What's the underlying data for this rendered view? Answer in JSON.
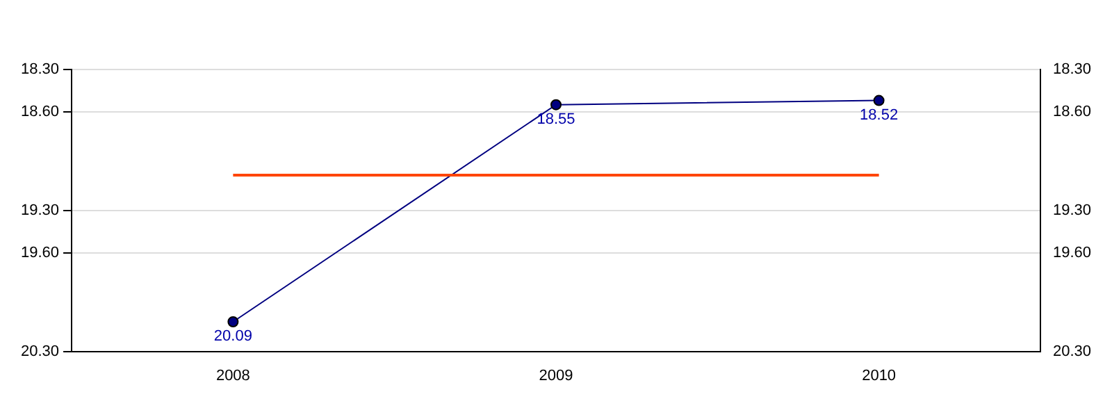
{
  "chart_data": {
    "type": "line",
    "categories": [
      "2008",
      "2009",
      "2010"
    ],
    "series": [
      {
        "color": "#000080",
        "values": [
          20.09,
          18.55,
          18.52
        ]
      }
    ],
    "data_labels": true,
    "marker": "circle",
    "grid": "y",
    "legend": false,
    "ylim": [
      20.3,
      18.3
    ],
    "yticks": [
      {
        "value": 18.3,
        "label": "18.30"
      },
      {
        "value": 18.6,
        "label": "18.60"
      },
      {
        "value": 19.3,
        "label": "19.30"
      },
      {
        "value": 19.6,
        "label": "19.60"
      },
      {
        "value": 20.3,
        "label": "20.30"
      }
    ],
    "y2lim": [
      20.3,
      18.3
    ],
    "y2ticks": [
      {
        "value": 18.3,
        "label": "18.30"
      },
      {
        "value": 18.6,
        "label": "18.60"
      },
      {
        "value": 19.3,
        "label": "19.30"
      },
      {
        "value": 19.6,
        "label": "19.60"
      },
      {
        "value": 20.3,
        "label": "20.30"
      }
    ],
    "ref_lines": [
      {
        "axis": "y",
        "value": 19.05,
        "color": "#ff4500"
      }
    ]
  }
}
